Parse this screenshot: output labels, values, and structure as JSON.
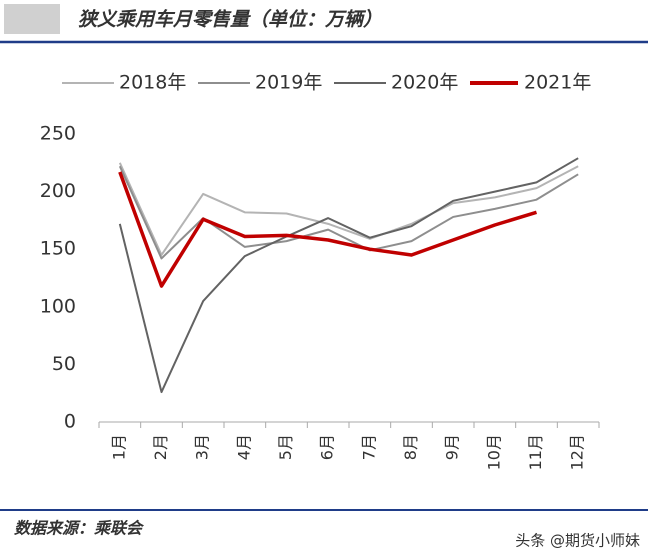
{
  "chart_data": {
    "type": "line",
    "title": "狭义乘用车月零售量（单位：万辆）",
    "source": "数据来源：乘联会",
    "watermark": "头条 @期货小师妹",
    "categories": [
      "1月",
      "2月",
      "3月",
      "4月",
      "5月",
      "6月",
      "7月",
      "8月",
      "9月",
      "10月",
      "11月",
      "12月"
    ],
    "series": [
      {
        "name": "2018年",
        "color": "#b4b4b4",
        "values": [
          225,
          145,
          198,
          182,
          181,
          172,
          159,
          172,
          190,
          195,
          203,
          222
        ]
      },
      {
        "name": "2019年",
        "color": "#8e8e8e",
        "values": [
          222,
          142,
          177,
          152,
          157,
          167,
          149,
          157,
          178,
          185,
          193,
          215
        ]
      },
      {
        "name": "2020年",
        "color": "#636363",
        "values": [
          172,
          26,
          105,
          144,
          161,
          177,
          160,
          170,
          192,
          200,
          208,
          229
        ]
      },
      {
        "name": "2021年",
        "color": "#c00000",
        "values": [
          217,
          118,
          176,
          161,
          162,
          158,
          150,
          145,
          158,
          171,
          182,
          null
        ]
      }
    ],
    "ylim": [
      0,
      250
    ],
    "yticks": [
      0,
      50,
      100,
      150,
      200,
      250
    ]
  }
}
